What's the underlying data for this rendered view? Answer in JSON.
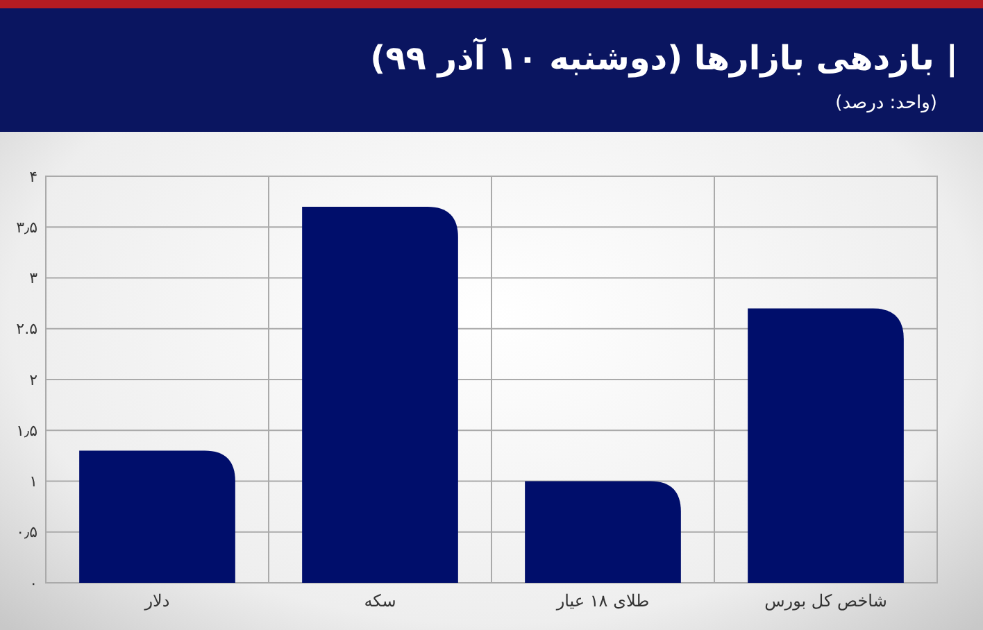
{
  "chart_data": {
    "type": "bar",
    "title": "| بازدهی بازارها (دوشنبه ۱۰ آذر ۹۹)",
    "subtitle": "(واحد: درصد)",
    "categories": [
      "دلار",
      "سکه",
      "طلای ۱۸ عیار",
      "شاخص کل بورس"
    ],
    "values": [
      1.3,
      3.7,
      1.0,
      2.7
    ],
    "color": "#000e6b",
    "ylim": [
      0,
      4
    ],
    "yticks": [
      {
        "value": 0,
        "label": "۰"
      },
      {
        "value": 0.5,
        "label": "۰٫۵"
      },
      {
        "value": 1,
        "label": "۱"
      },
      {
        "value": 1.5,
        "label": "۱٫۵"
      },
      {
        "value": 2,
        "label": "۲"
      },
      {
        "value": 2.5,
        "label": "۲.۵"
      },
      {
        "value": 3,
        "label": "۳"
      },
      {
        "value": 3.5,
        "label": "۳٫۵"
      },
      {
        "value": 4,
        "label": "۴"
      }
    ],
    "grid": true
  }
}
